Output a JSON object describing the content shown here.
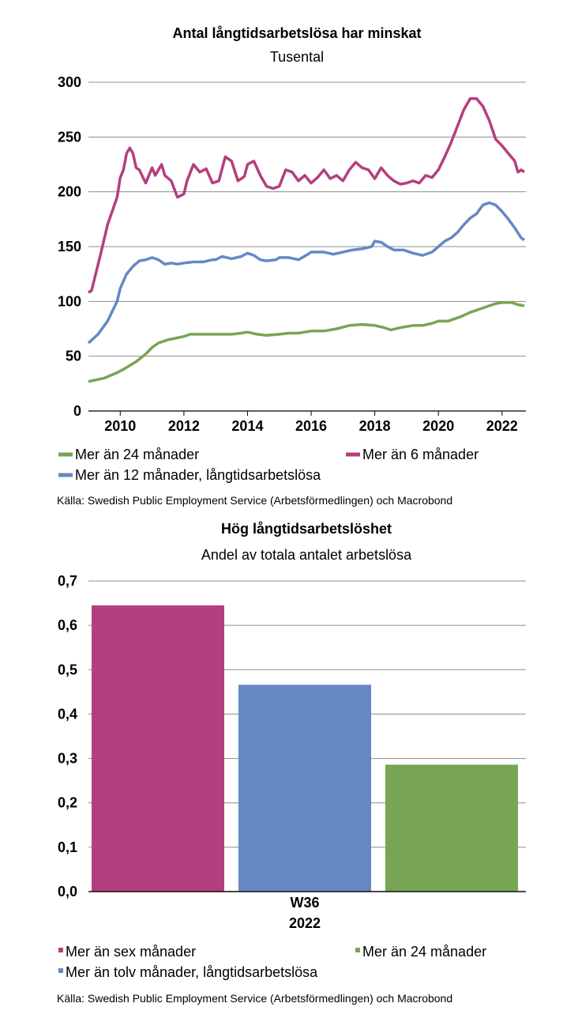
{
  "chart_data": [
    {
      "type": "line",
      "title": "Antal långtidsarbetslösa har minskat",
      "subtitle": "Tusental",
      "source": "Källa: Swedish Public Employment Service (Arbetsförmedlingen) och Macrobond",
      "ylim": [
        0,
        300
      ],
      "yticks": [
        "0",
        "50",
        "100",
        "150",
        "200",
        "250",
        "300"
      ],
      "xlim": [
        2009.0,
        2022.75
      ],
      "xticks": [
        "2010",
        "2012",
        "2014",
        "2016",
        "2018",
        "2020",
        "2022"
      ],
      "grid": true,
      "legend_position": "bottom",
      "series": [
        {
          "name": "Mer än 24 månader",
          "color": "#77a553",
          "points": [
            [
              2009.0,
              27
            ],
            [
              2009.5,
              30
            ],
            [
              2009.9,
              35
            ],
            [
              2010.1,
              38
            ],
            [
              2010.5,
              45
            ],
            [
              2010.8,
              52
            ],
            [
              2011.0,
              58
            ],
            [
              2011.2,
              62
            ],
            [
              2011.5,
              65
            ],
            [
              2012.0,
              68
            ],
            [
              2012.2,
              70
            ],
            [
              2012.6,
              70
            ],
            [
              2013.0,
              70
            ],
            [
              2013.5,
              70
            ],
            [
              2013.8,
              71
            ],
            [
              2014.0,
              72
            ],
            [
              2014.3,
              70
            ],
            [
              2014.6,
              69
            ],
            [
              2015.0,
              70
            ],
            [
              2015.3,
              71
            ],
            [
              2015.6,
              71
            ],
            [
              2016.0,
              73
            ],
            [
              2016.4,
              73
            ],
            [
              2016.8,
              75
            ],
            [
              2017.2,
              78
            ],
            [
              2017.6,
              79
            ],
            [
              2018.0,
              78
            ],
            [
              2018.3,
              76
            ],
            [
              2018.5,
              74
            ],
            [
              2018.8,
              76
            ],
            [
              2019.2,
              78
            ],
            [
              2019.5,
              78
            ],
            [
              2019.8,
              80
            ],
            [
              2020.0,
              82
            ],
            [
              2020.3,
              82
            ],
            [
              2020.7,
              86
            ],
            [
              2021.0,
              90
            ],
            [
              2021.3,
              93
            ],
            [
              2021.6,
              96
            ],
            [
              2021.8,
              98
            ],
            [
              2022.0,
              99
            ],
            [
              2022.3,
              99
            ],
            [
              2022.5,
              97
            ],
            [
              2022.7,
              96
            ]
          ]
        },
        {
          "name": "Mer än 6 månader",
          "color": "#b43f7f",
          "points": [
            [
              2009.0,
              108
            ],
            [
              2009.1,
              110
            ],
            [
              2009.4,
              145
            ],
            [
              2009.6,
              170
            ],
            [
              2009.9,
              195
            ],
            [
              2010.0,
              213
            ],
            [
              2010.1,
              220
            ],
            [
              2010.2,
              235
            ],
            [
              2010.3,
              240
            ],
            [
              2010.4,
              235
            ],
            [
              2010.5,
              222
            ],
            [
              2010.6,
              220
            ],
            [
              2010.8,
              208
            ],
            [
              2011.0,
              222
            ],
            [
              2011.1,
              215
            ],
            [
              2011.3,
              225
            ],
            [
              2011.4,
              215
            ],
            [
              2011.6,
              210
            ],
            [
              2011.8,
              195
            ],
            [
              2012.0,
              198
            ],
            [
              2012.1,
              210
            ],
            [
              2012.3,
              225
            ],
            [
              2012.5,
              218
            ],
            [
              2012.7,
              221
            ],
            [
              2012.9,
              208
            ],
            [
              2013.1,
              210
            ],
            [
              2013.3,
              232
            ],
            [
              2013.5,
              228
            ],
            [
              2013.7,
              210
            ],
            [
              2013.9,
              214
            ],
            [
              2014.0,
              225
            ],
            [
              2014.2,
              228
            ],
            [
              2014.4,
              215
            ],
            [
              2014.6,
              205
            ],
            [
              2014.8,
              203
            ],
            [
              2015.0,
              205
            ],
            [
              2015.2,
              220
            ],
            [
              2015.4,
              218
            ],
            [
              2015.6,
              210
            ],
            [
              2015.8,
              215
            ],
            [
              2016.0,
              208
            ],
            [
              2016.2,
              213
            ],
            [
              2016.4,
              220
            ],
            [
              2016.6,
              212
            ],
            [
              2016.8,
              215
            ],
            [
              2017.0,
              210
            ],
            [
              2017.2,
              220
            ],
            [
              2017.4,
              227
            ],
            [
              2017.6,
              222
            ],
            [
              2017.8,
              220
            ],
            [
              2018.0,
              212
            ],
            [
              2018.2,
              222
            ],
            [
              2018.4,
              215
            ],
            [
              2018.6,
              210
            ],
            [
              2018.8,
              207
            ],
            [
              2019.0,
              208
            ],
            [
              2019.2,
              210
            ],
            [
              2019.4,
              208
            ],
            [
              2019.6,
              215
            ],
            [
              2019.8,
              213
            ],
            [
              2020.0,
              220
            ],
            [
              2020.2,
              232
            ],
            [
              2020.4,
              245
            ],
            [
              2020.6,
              260
            ],
            [
              2020.8,
              275
            ],
            [
              2021.0,
              285
            ],
            [
              2021.2,
              285
            ],
            [
              2021.4,
              278
            ],
            [
              2021.6,
              265
            ],
            [
              2021.8,
              248
            ],
            [
              2022.0,
              242
            ],
            [
              2022.2,
              235
            ],
            [
              2022.4,
              228
            ],
            [
              2022.5,
              218
            ],
            [
              2022.6,
              220
            ],
            [
              2022.7,
              218
            ]
          ]
        },
        {
          "name": "Mer än 12 månader, långtidsarbetslösa",
          "color": "#6688c4",
          "points": [
            [
              2009.0,
              62
            ],
            [
              2009.3,
              70
            ],
            [
              2009.6,
              82
            ],
            [
              2009.9,
              100
            ],
            [
              2010.0,
              112
            ],
            [
              2010.2,
              125
            ],
            [
              2010.4,
              132
            ],
            [
              2010.6,
              137
            ],
            [
              2010.8,
              138
            ],
            [
              2011.0,
              140
            ],
            [
              2011.2,
              138
            ],
            [
              2011.4,
              134
            ],
            [
              2011.6,
              135
            ],
            [
              2011.8,
              134
            ],
            [
              2012.0,
              135
            ],
            [
              2012.3,
              136
            ],
            [
              2012.6,
              136
            ],
            [
              2012.9,
              138
            ],
            [
              2013.0,
              138
            ],
            [
              2013.2,
              141
            ],
            [
              2013.5,
              139
            ],
            [
              2013.8,
              141
            ],
            [
              2014.0,
              144
            ],
            [
              2014.2,
              142
            ],
            [
              2014.4,
              138
            ],
            [
              2014.6,
              137
            ],
            [
              2014.9,
              138
            ],
            [
              2015.0,
              140
            ],
            [
              2015.3,
              140
            ],
            [
              2015.6,
              138
            ],
            [
              2015.9,
              143
            ],
            [
              2016.0,
              145
            ],
            [
              2016.4,
              145
            ],
            [
              2016.7,
              143
            ],
            [
              2017.0,
              145
            ],
            [
              2017.3,
              147
            ],
            [
              2017.6,
              148
            ],
            [
              2017.9,
              150
            ],
            [
              2018.0,
              155
            ],
            [
              2018.2,
              154
            ],
            [
              2018.4,
              150
            ],
            [
              2018.6,
              147
            ],
            [
              2018.9,
              147
            ],
            [
              2019.2,
              144
            ],
            [
              2019.5,
              142
            ],
            [
              2019.8,
              145
            ],
            [
              2020.0,
              150
            ],
            [
              2020.2,
              155
            ],
            [
              2020.4,
              158
            ],
            [
              2020.6,
              163
            ],
            [
              2020.8,
              170
            ],
            [
              2021.0,
              176
            ],
            [
              2021.2,
              180
            ],
            [
              2021.4,
              188
            ],
            [
              2021.6,
              190
            ],
            [
              2021.8,
              188
            ],
            [
              2022.0,
              182
            ],
            [
              2022.2,
              175
            ],
            [
              2022.4,
              167
            ],
            [
              2022.6,
              158
            ],
            [
              2022.7,
              156
            ]
          ]
        }
      ]
    },
    {
      "type": "bar",
      "title": "Hög långtidsarbetslöshet",
      "subtitle": "Andel av totala antalet arbetslösa",
      "source": "Källa: Swedish Public Employment Service (Arbetsförmedlingen) och Macrobond",
      "ylim": [
        0,
        0.7
      ],
      "yticks": [
        "0,0",
        "0,1",
        "0,2",
        "0,3",
        "0,4",
        "0,5",
        "0,6",
        "0,7"
      ],
      "categories": [
        "W36",
        "2022"
      ],
      "grid": true,
      "legend_position": "bottom",
      "series": [
        {
          "name": "Mer än sex månader",
          "value": 0.645,
          "color": "#b43f7f"
        },
        {
          "name": "Mer än tolv månader, långtidsarbetslösa",
          "value": 0.466,
          "color": "#6688c4"
        },
        {
          "name": "Mer än 24 månader",
          "value": 0.286,
          "color": "#77a553"
        }
      ]
    }
  ]
}
